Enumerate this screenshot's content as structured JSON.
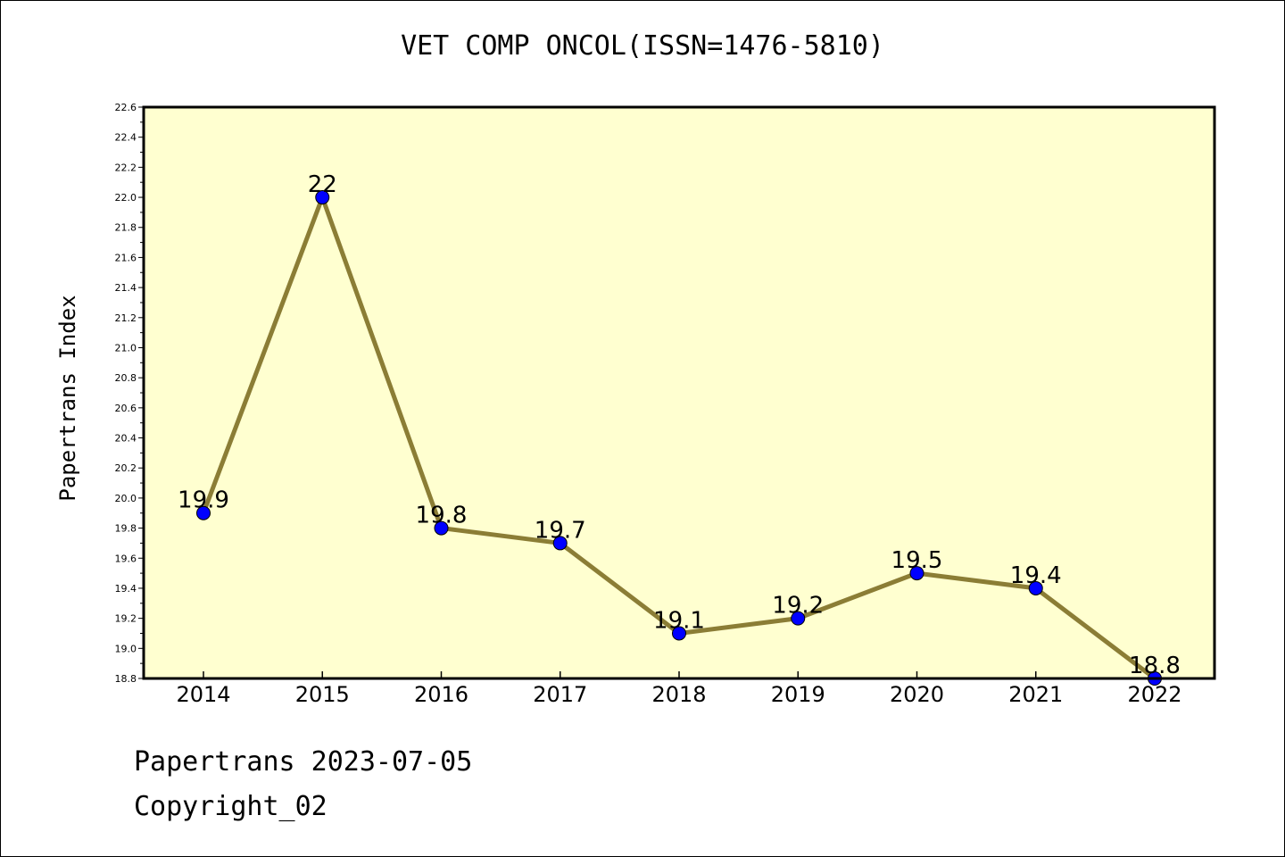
{
  "chart_data": {
    "type": "line",
    "title": "VET COMP ONCOL(ISSN=1476-5810)",
    "xlabel": "",
    "ylabel": "Papertrans Index",
    "categories": [
      "2014",
      "2015",
      "2016",
      "2017",
      "2018",
      "2019",
      "2020",
      "2021",
      "2022"
    ],
    "values": [
      19.9,
      22,
      19.8,
      19.7,
      19.1,
      19.2,
      19.5,
      19.4,
      18.8
    ],
    "data_labels": [
      "19.9",
      "22",
      "19.8",
      "19.7",
      "19.1",
      "19.2",
      "19.5",
      "19.4",
      "18.8"
    ],
    "ylim": [
      18.8,
      22.6
    ],
    "yticks": [
      "18.8",
      "19.0",
      "19.2",
      "19.4",
      "19.6",
      "19.8",
      "20.0",
      "20.2",
      "20.4",
      "20.6",
      "20.8",
      "21.0",
      "21.2",
      "21.4",
      "21.6",
      "21.8",
      "22.0",
      "22.2",
      "22.4",
      "22.6"
    ],
    "grid": false,
    "colors": {
      "plot_background": "#ffffd0",
      "line": "#8b7d35",
      "marker": "#0000ff"
    }
  },
  "footer": {
    "line1": "Papertrans 2023-07-05",
    "line2": "Copyright_02"
  }
}
